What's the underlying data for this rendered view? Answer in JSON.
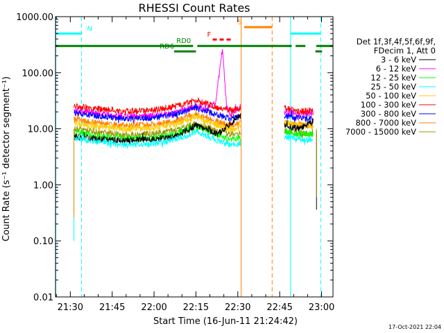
{
  "chart_data": {
    "type": "line",
    "title": "RHESSI Count Rates",
    "xlabel": "Start Time (16-Jun-11 21:24:42)",
    "ylabel": "Count Rate (s⁻¹ detector segment⁻¹)",
    "x_tick_labels": [
      "21:30",
      "21:45",
      "22:00",
      "22:15",
      "22:30",
      "22:45",
      "23:00"
    ],
    "x_ticks_min": [
      90,
      105,
      120,
      135,
      150,
      165,
      180
    ],
    "xlim_min": [
      84.7,
      184.1
    ],
    "y_scale": "log",
    "ylim": [
      0.01,
      1000
    ],
    "y_tick_values": [
      0.01,
      0.1,
      1,
      10,
      100,
      1000
    ],
    "y_tick_labels": [
      "0.01",
      "0.10",
      "1.00",
      "10.00",
      "100.00",
      "1000.00"
    ],
    "legend": {
      "placement": "right",
      "header": [
        "Det 1f,3f,4f,5f,6f,9f,",
        "FDecim 1, Att 0"
      ]
    },
    "series": [
      {
        "name": "3 - 6 keV",
        "color": "#000000",
        "segments": [
          {
            "x": [
              91.3,
              100,
              110,
              120,
              127,
              132,
              135,
              139,
              143,
              147,
              151
            ],
            "y": [
              7.2,
              6.5,
              6.2,
              6.5,
              7.2,
              9.5,
              11.5,
              9.5,
              8.0,
              12.0,
              17.0
            ]
          },
          {
            "x": [
              166.7,
              172,
              177
            ],
            "y": [
              11.0,
              10.0,
              13.5
            ]
          }
        ]
      },
      {
        "name": "6 - 12 keV",
        "color": "#ff00ff",
        "segments": [
          {
            "x": [
              91.3,
              100,
              110,
              120,
              127,
              132,
              135,
              139,
              142,
              144.5,
              146,
              147.5,
              151
            ],
            "y": [
              21.0,
              18.5,
              16.5,
              17.0,
              19.0,
              23.0,
              25.0,
              22.0,
              30.0,
              260.0,
              24.0,
              18.0,
              25.0
            ]
          },
          {
            "x": [
              166.7,
              172,
              177
            ],
            "y": [
              20.0,
              18.0,
              19.5
            ]
          }
        ]
      },
      {
        "name": "12 - 25 keV",
        "color": "#00ff00",
        "segments": [
          {
            "x": [
              91.3,
              100,
              110,
              120,
              127,
              132,
              135,
              139,
              143,
              147,
              151
            ],
            "y": [
              8.8,
              7.3,
              6.6,
              6.9,
              7.8,
              9.5,
              11.0,
              9.3,
              7.4,
              6.4,
              6.8
            ]
          },
          {
            "x": [
              166.7,
              172,
              177
            ],
            "y": [
              9.0,
              8.0,
              8.0
            ]
          }
        ]
      },
      {
        "name": "25 - 50 keV",
        "color": "#00ffff",
        "segments": [
          {
            "x": [
              91.3,
              100,
              110,
              120,
              127,
              132,
              135,
              139,
              143,
              147,
              151
            ],
            "y": [
              6.9,
              5.8,
              5.1,
              5.4,
              6.2,
              7.6,
              8.8,
              7.5,
              6.0,
              5.1,
              5.4
            ]
          },
          {
            "x": [
              166.7,
              172,
              177
            ],
            "y": [
              7.2,
              6.5,
              6.2
            ]
          }
        ]
      },
      {
        "name": "50 - 100 keV",
        "color": "#ffcc00",
        "segments": [
          {
            "x": [
              91.3,
              100,
              110,
              120,
              127,
              132,
              135,
              139,
              143,
              147,
              151
            ],
            "y": [
              12.8,
              11.0,
              9.9,
              10.4,
              11.8,
              14.5,
              16.5,
              13.5,
              11.5,
              10.0,
              10.5
            ]
          },
          {
            "x": [
              166.7,
              172,
              177
            ],
            "y": [
              13.0,
              11.5,
              11.0
            ]
          }
        ]
      },
      {
        "name": "100 - 300 keV",
        "color": "#ff0000",
        "segments": [
          {
            "x": [
              91.3,
              100,
              110,
              120,
              127,
              132,
              135,
              139,
              143,
              147,
              151
            ],
            "y": [
              26.0,
              22.5,
              20.5,
              21.5,
              24.5,
              29.5,
              32.0,
              28.0,
              24.0,
              21.5,
              23.0
            ]
          },
          {
            "x": [
              166.7,
              172,
              177
            ],
            "y": [
              24.0,
              20.0,
              22.0
            ]
          }
        ]
      },
      {
        "name": "300 - 800 keV",
        "color": "#0000ff",
        "segments": [
          {
            "x": [
              91.3,
              100,
              110,
              120,
              127,
              132,
              135,
              139,
              143,
              147,
              151
            ],
            "y": [
              19.5,
              16.8,
              15.0,
              15.8,
              18.0,
              21.5,
              23.5,
              20.5,
              17.5,
              15.5,
              16.5
            ]
          },
          {
            "x": [
              166.7,
              172,
              177
            ],
            "y": [
              17.0,
              15.5,
              15.0
            ]
          }
        ]
      },
      {
        "name": "800 - 7000 keV",
        "color": "#ff8000",
        "segments": [
          {
            "x": [
              91.3,
              100,
              110,
              120,
              127,
              132,
              135,
              139,
              143,
              147,
              151
            ],
            "y": [
              15.0,
              12.8,
              11.4,
              12.0,
              13.6,
              16.5,
              18.0,
              15.5,
              13.2,
              11.7,
              12.5
            ]
          },
          {
            "x": [
              166.7,
              172,
              177
            ],
            "y": [
              13.0,
              11.8,
              11.5
            ]
          }
        ]
      },
      {
        "name": "7000 - 15000 keV",
        "color": "#999900",
        "segments": [
          {
            "x": [
              91.3,
              100,
              110,
              120,
              127,
              132,
              135,
              139,
              143,
              147,
              151
            ],
            "y": [
              10.0,
              8.6,
              7.8,
              8.2,
              9.3,
              11.2,
              12.2,
              10.6,
              9.0,
              8.0,
              8.5
            ]
          },
          {
            "x": [
              166.7,
              172,
              177
            ],
            "y": [
              9.2,
              8.4,
              8.0
            ]
          }
        ]
      }
    ],
    "drop_lines": [
      {
        "x": 91.3,
        "from": 8.5,
        "to": 0.1,
        "color": "#00ffff"
      },
      {
        "x": 91.3,
        "from": 10.0,
        "to": 0.26,
        "color": "#ff8000"
      },
      {
        "x": 178.2,
        "from": 9.0,
        "to": 0.36,
        "color": "#000000"
      },
      {
        "x": 178.2,
        "from": 10.0,
        "to": 0.6,
        "color": "#999900"
      }
    ],
    "vertical_markers": [
      {
        "x": 84.8,
        "color": "#00ffff",
        "style": "solid"
      },
      {
        "x": 94.0,
        "color": "#00ffff",
        "style": "dashed"
      },
      {
        "x": 151.2,
        "color": "#ff8000",
        "style": "solid"
      },
      {
        "x": 162.3,
        "color": "#ff8000",
        "style": "dashed"
      },
      {
        "x": 168.9,
        "color": "#00ffff",
        "style": "solid"
      },
      {
        "x": 179.7,
        "color": "#00ffff",
        "style": "dashed"
      }
    ],
    "flag_bars": [
      {
        "label": "N",
        "color": "#00ffff",
        "style": "solid",
        "x0": 84.8,
        "x1": 94.0,
        "y": 500,
        "label_x": 96
      },
      {
        "label": "",
        "color": "#00ffff",
        "style": "solid",
        "x0": 168.9,
        "x1": 179.7,
        "y": 500
      },
      {
        "label": "S",
        "color": "#ff8000",
        "style": "solid",
        "x0": 152.3,
        "x1": 162.3,
        "y": 650,
        "label_x": 150
      },
      {
        "label": "F",
        "color": "#ff0000",
        "style": "dashed",
        "x0": 141.0,
        "x1": 147.5,
        "y": 390,
        "label_x": 139
      },
      {
        "label": "RD0",
        "color": "#008000",
        "style": "solid",
        "x0": 84.8,
        "x1": 134.0,
        "y": 300,
        "label_x": 128
      },
      {
        "label": "",
        "color": "#008000",
        "style": "solid",
        "x0": 135.5,
        "x1": 169.3,
        "y": 300
      },
      {
        "label": "",
        "color": "#008000",
        "style": "solid",
        "x0": 170.7,
        "x1": 174.2,
        "y": 300
      },
      {
        "label": "",
        "color": "#008000",
        "style": "solid",
        "x0": 178.1,
        "x1": 184.1,
        "y": 300
      },
      {
        "label": "RD6",
        "color": "#008000",
        "style": "solid",
        "x0": 127.2,
        "x1": 135.0,
        "y": 240,
        "label_x": 122
      },
      {
        "label": "",
        "color": "#008000",
        "style": "solid",
        "x0": 177.8,
        "x1": 180.2,
        "y": 240
      }
    ],
    "date_stamp": "17-Oct-2021 22:04"
  }
}
